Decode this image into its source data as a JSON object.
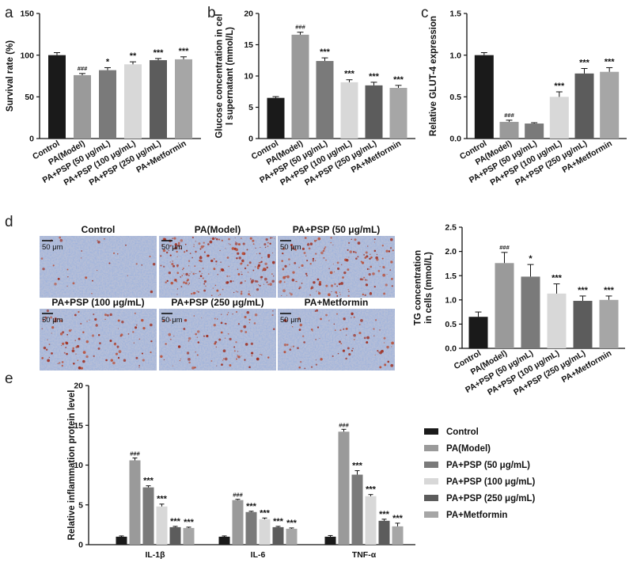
{
  "panel_labels": [
    "a",
    "b",
    "c",
    "d",
    "e"
  ],
  "micrographs": {
    "scale_bar_label": "50 μm",
    "tiles": [
      {
        "title": "Control",
        "stain": 0.05
      },
      {
        "title": "PA(Model)",
        "stain": 0.9
      },
      {
        "title": "PA+PSP (50 μg/mL)",
        "stain": 0.6
      },
      {
        "title": "PA+PSP (100 μg/mL)",
        "stain": 0.35
      },
      {
        "title": "PA+PSP (250 μg/mL)",
        "stain": 0.3
      },
      {
        "title": "PA+Metformin",
        "stain": 0.25
      }
    ]
  },
  "colors": {
    "Control": "#1a1a1a",
    "PA(Model)": "#9a9a9a",
    "PA+PSP (50 μg/mL)": "#7a7a7a",
    "PA+PSP (100 μg/mL)": "#d8d8d8",
    "PA+PSP (250 μg/mL)": "#5c5c5c",
    "PA+Metformin": "#a6a6a6"
  },
  "chart_data": [
    {
      "id": "a",
      "type": "bar",
      "ylabel": "Survival rate (%)",
      "ylim": [
        0,
        150
      ],
      "yticks": [
        0,
        50,
        100,
        150
      ],
      "categories": [
        "Control",
        "PA(Model)",
        "PA+PSP (50 μg/mL)",
        "PA+PSP (100 μg/mL)",
        "PA+PSP (250 μg/mL)",
        "PA+Metformin"
      ],
      "values": [
        100,
        76,
        82,
        89,
        94,
        95
      ],
      "errors": [
        3,
        2,
        3,
        3,
        2,
        3
      ],
      "annotations": [
        "",
        "###",
        "*",
        "**",
        "***",
        "***"
      ]
    },
    {
      "id": "b",
      "type": "bar",
      "ylabel": "Glucose concentration in cell supernatant (mmol/L)",
      "ylim": [
        0,
        20
      ],
      "yticks": [
        0,
        5,
        10,
        15,
        20
      ],
      "categories": [
        "Control",
        "PA(Model)",
        "PA+PSP (50 μg/mL)",
        "PA+PSP (100 μg/mL)",
        "PA+PSP (250 μg/mL)",
        "PA+Metformin"
      ],
      "values": [
        6.5,
        16.6,
        12.4,
        9.0,
        8.5,
        8.1
      ],
      "errors": [
        0.2,
        0.4,
        0.5,
        0.4,
        0.5,
        0.4
      ],
      "annotations": [
        "",
        "###",
        "***",
        "***",
        "***",
        "***"
      ]
    },
    {
      "id": "c",
      "type": "bar",
      "ylabel": "Relative GLUT-4 expression",
      "ylim": [
        0,
        1.5
      ],
      "yticks": [
        0.0,
        0.5,
        1.0,
        1.5
      ],
      "categories": [
        "Control",
        "PA(Model)",
        "PA+PSP (50 μg/mL)",
        "PA+PSP (100 μg/mL)",
        "PA+PSP (250 μg/mL)",
        "PA+Metformin"
      ],
      "values": [
        1.0,
        0.2,
        0.18,
        0.5,
        0.78,
        0.8
      ],
      "errors": [
        0.03,
        0.02,
        0.01,
        0.06,
        0.06,
        0.05
      ],
      "annotations": [
        "",
        "###",
        "",
        "***",
        "***",
        "***"
      ]
    },
    {
      "id": "d",
      "type": "bar",
      "ylabel": "TG concentration in cells (mmol/L)",
      "ylim": [
        0,
        2.5
      ],
      "yticks": [
        0.0,
        0.5,
        1.0,
        1.5,
        2.0,
        2.5
      ],
      "categories": [
        "Control",
        "PA(Model)",
        "PA+PSP (50 μg/mL)",
        "PA+PSP (100 μg/mL)",
        "PA+PSP (250 μg/mL)",
        "PA+Metformin"
      ],
      "values": [
        0.65,
        1.76,
        1.48,
        1.13,
        0.98,
        1.0
      ],
      "errors": [
        0.1,
        0.22,
        0.25,
        0.2,
        0.1,
        0.08
      ],
      "annotations": [
        "",
        "###",
        "*",
        "***",
        "***",
        "***"
      ]
    },
    {
      "id": "e",
      "type": "bar",
      "ylabel": "Relative inflammation protein level",
      "ylim": [
        0,
        20
      ],
      "yticks": [
        0,
        5,
        10,
        15,
        20
      ],
      "categories": [
        "IL-1β",
        "IL-6",
        "TNF-α"
      ],
      "legend_position": "right",
      "series": [
        {
          "name": "Control",
          "values": [
            1.0,
            1.0,
            1.0
          ],
          "errors": [
            0.1,
            0.1,
            0.15
          ],
          "annotations": [
            "",
            "",
            ""
          ]
        },
        {
          "name": "PA(Model)",
          "values": [
            10.6,
            5.6,
            14.2
          ],
          "errors": [
            0.3,
            0.1,
            0.3
          ],
          "annotations": [
            "###",
            "###",
            "###"
          ]
        },
        {
          "name": "PA+PSP (50 μg/mL)",
          "values": [
            7.2,
            4.1,
            8.8
          ],
          "errors": [
            0.2,
            0.1,
            0.5
          ],
          "annotations": [
            "***",
            "***",
            "***"
          ]
        },
        {
          "name": "PA+PSP (100 μg/mL)",
          "values": [
            4.8,
            3.2,
            6.1
          ],
          "errors": [
            0.3,
            0.15,
            0.2
          ],
          "annotations": [
            "***",
            "***",
            "***"
          ]
        },
        {
          "name": "PA+PSP (250 μg/mL)",
          "values": [
            2.2,
            2.2,
            3.0
          ],
          "errors": [
            0.1,
            0.1,
            0.2
          ],
          "annotations": [
            "***",
            "***",
            "***"
          ]
        },
        {
          "name": "PA+Metformin",
          "values": [
            2.1,
            2.0,
            2.3
          ],
          "errors": [
            0.1,
            0.1,
            0.4
          ],
          "annotations": [
            "***",
            "***",
            "***"
          ]
        }
      ]
    }
  ]
}
